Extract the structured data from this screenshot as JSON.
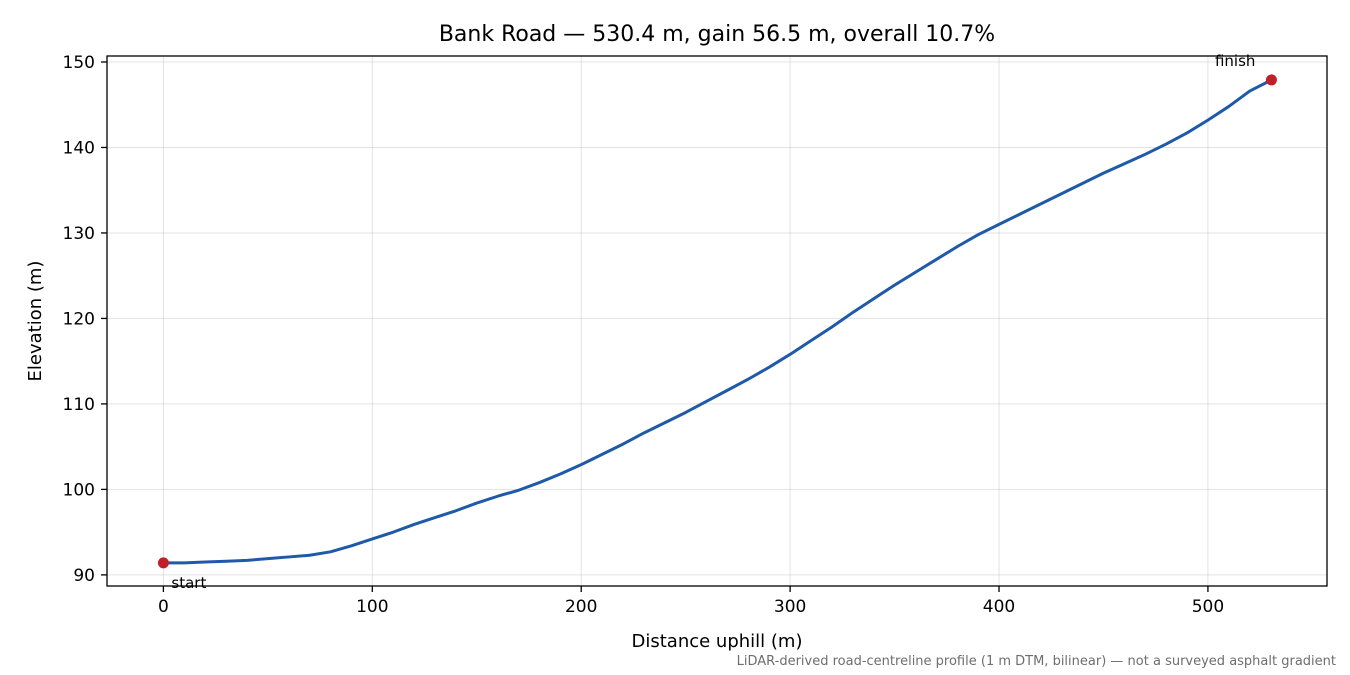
{
  "chart_data": {
    "type": "line",
    "title": "Bank Road — 530.4 m, gain 56.5 m, overall 10.7%",
    "xlabel": "Distance uphill (m)",
    "ylabel": "Elevation (m)",
    "xlim": [
      -27,
      557
    ],
    "ylim": [
      88.7,
      150.7
    ],
    "xticks": [
      0,
      100,
      200,
      300,
      400,
      500
    ],
    "yticks": [
      90,
      100,
      110,
      120,
      130,
      140,
      150
    ],
    "grid": true,
    "footnote": "LiDAR-derived road-centreline profile (1 m DTM, bilinear) — not a surveyed asphalt gradient",
    "series": [
      {
        "color": "#1f5aa8",
        "x": [
          0,
          10,
          20,
          30,
          40,
          50,
          60,
          70,
          80,
          90,
          100,
          110,
          120,
          130,
          140,
          150,
          160,
          170,
          180,
          190,
          200,
          210,
          220,
          230,
          240,
          250,
          260,
          270,
          280,
          290,
          300,
          310,
          320,
          330,
          340,
          350,
          360,
          370,
          380,
          390,
          400,
          410,
          420,
          430,
          440,
          450,
          460,
          470,
          480,
          490,
          500,
          510,
          520,
          530.4
        ],
        "y": [
          91.4,
          91.4,
          91.5,
          91.6,
          91.7,
          91.9,
          92.1,
          92.3,
          92.7,
          93.4,
          94.2,
          95.0,
          95.9,
          96.7,
          97.5,
          98.4,
          99.2,
          99.9,
          100.8,
          101.8,
          102.9,
          104.1,
          105.3,
          106.6,
          107.8,
          109.0,
          110.3,
          111.6,
          112.9,
          114.3,
          115.8,
          117.4,
          119.0,
          120.7,
          122.3,
          123.9,
          125.4,
          126.9,
          128.4,
          129.8,
          131.0,
          132.2,
          133.4,
          134.6,
          135.8,
          137.0,
          138.1,
          139.2,
          140.4,
          141.7,
          143.2,
          144.8,
          146.6,
          147.9
        ]
      }
    ],
    "markers": [
      {
        "label": "start",
        "x": 0,
        "y": 91.4,
        "color": "#c0202a"
      },
      {
        "label": "finish",
        "x": 530.4,
        "y": 147.9,
        "color": "#c0202a"
      }
    ]
  }
}
